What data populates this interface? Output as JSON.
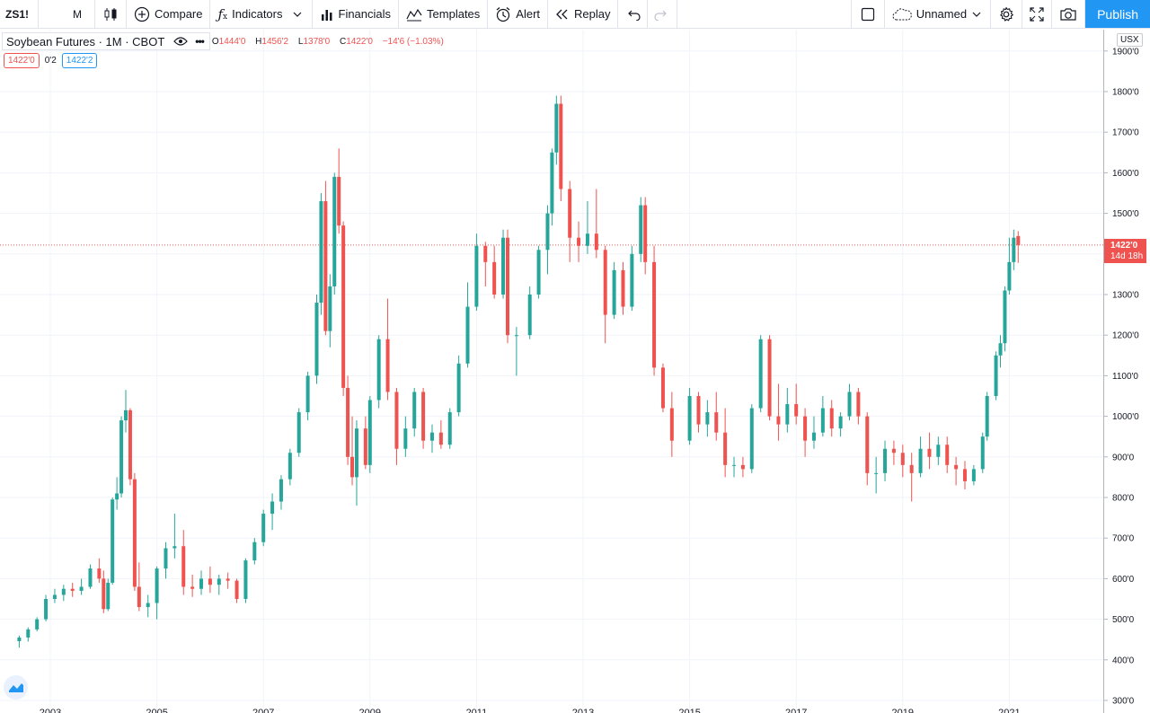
{
  "toolbar": {
    "symbol": "ZS1!",
    "interval": "M",
    "compare_label": "Compare",
    "indicators_label": "Indicators",
    "financials_label": "Financials",
    "templates_label": "Templates",
    "alert_label": "Alert",
    "replay_label": "Replay",
    "layout_name": "Unnamed",
    "publish_label": "Publish"
  },
  "legend": {
    "title": "Soybean Futures · 1M · CBOT",
    "open_label": "O",
    "open": "1444'0",
    "high_label": "H",
    "high": "1456'2",
    "low_label": "L",
    "low": "1378'0",
    "close_label": "C",
    "close": "1422'0",
    "change": "−14'6 (−1.03%)",
    "bid": "1422'0",
    "spread": "0'2",
    "ask": "1422'2"
  },
  "price_axis": {
    "currency": "USX",
    "current_price": "1422'0",
    "countdown": "14d 18h",
    "ticks": [
      "1900'0",
      "1800'0",
      "1700'0",
      "1600'0",
      "1500'0",
      "1400'0",
      "1300'0",
      "1200'0",
      "1100'0",
      "1000'0",
      "900'0",
      "800'0",
      "700'0",
      "600'0",
      "500'0",
      "400'0",
      "300'0"
    ]
  },
  "colors": {
    "up": "#26a69a",
    "down": "#ef5350",
    "accent": "#2196f3",
    "grid": "#f0f3fa"
  },
  "chart_data": {
    "type": "candlestick",
    "interval": "1M",
    "ylim": [
      300,
      1900
    ],
    "current_price": 1422,
    "x_tick_labels": [
      "2003",
      "2005",
      "2007",
      "2009",
      "2011",
      "2013",
      "2015",
      "2017",
      "2019",
      "2021"
    ],
    "series": [
      {
        "date": "2002-06",
        "ohlc": [
          446,
          460,
          430,
          455
        ]
      },
      {
        "date": "2002-08",
        "ohlc": [
          455,
          480,
          445,
          475
        ]
      },
      {
        "date": "2002-10",
        "ohlc": [
          475,
          505,
          470,
          500
        ]
      },
      {
        "date": "2002-12",
        "ohlc": [
          500,
          560,
          495,
          550
        ]
      },
      {
        "date": "2003-02",
        "ohlc": [
          550,
          575,
          540,
          560
        ]
      },
      {
        "date": "2003-04",
        "ohlc": [
          560,
          585,
          545,
          575
        ]
      },
      {
        "date": "2003-06",
        "ohlc": [
          575,
          590,
          555,
          570
        ]
      },
      {
        "date": "2003-08",
        "ohlc": [
          570,
          600,
          560,
          580
        ]
      },
      {
        "date": "2003-10",
        "ohlc": [
          580,
          635,
          575,
          625
        ]
      },
      {
        "date": "2003-12",
        "ohlc": [
          625,
          650,
          590,
          600
        ]
      },
      {
        "date": "2004-01",
        "ohlc": [
          600,
          620,
          515,
          525
        ]
      },
      {
        "date": "2004-02",
        "ohlc": [
          525,
          600,
          520,
          590
        ]
      },
      {
        "date": "2004-03",
        "ohlc": [
          590,
          800,
          585,
          795
        ]
      },
      {
        "date": "2004-04",
        "ohlc": [
          795,
          850,
          770,
          810
        ]
      },
      {
        "date": "2004-05",
        "ohlc": [
          810,
          1000,
          800,
          990
        ]
      },
      {
        "date": "2004-06",
        "ohlc": [
          990,
          1065,
          960,
          1015
        ]
      },
      {
        "date": "2004-07",
        "ohlc": [
          1015,
          1020,
          830,
          845
        ]
      },
      {
        "date": "2004-08",
        "ohlc": [
          845,
          860,
          570,
          580
        ]
      },
      {
        "date": "2004-09",
        "ohlc": [
          580,
          640,
          520,
          530
        ]
      },
      {
        "date": "2004-11",
        "ohlc": [
          530,
          560,
          505,
          540
        ]
      },
      {
        "date": "2005-01",
        "ohlc": [
          540,
          630,
          500,
          625
        ]
      },
      {
        "date": "2005-03",
        "ohlc": [
          625,
          690,
          600,
          675
        ]
      },
      {
        "date": "2005-05",
        "ohlc": [
          675,
          760,
          650,
          680
        ]
      },
      {
        "date": "2005-07",
        "ohlc": [
          680,
          720,
          560,
          580
        ]
      },
      {
        "date": "2005-09",
        "ohlc": [
          580,
          610,
          555,
          575
        ]
      },
      {
        "date": "2005-11",
        "ohlc": [
          575,
          620,
          560,
          600
        ]
      },
      {
        "date": "2006-01",
        "ohlc": [
          600,
          630,
          565,
          585
        ]
      },
      {
        "date": "2006-03",
        "ohlc": [
          585,
          610,
          560,
          600
        ]
      },
      {
        "date": "2006-05",
        "ohlc": [
          600,
          615,
          575,
          595
        ]
      },
      {
        "date": "2006-07",
        "ohlc": [
          595,
          600,
          540,
          550
        ]
      },
      {
        "date": "2006-09",
        "ohlc": [
          550,
          650,
          540,
          645
        ]
      },
      {
        "date": "2006-11",
        "ohlc": [
          645,
          700,
          635,
          690
        ]
      },
      {
        "date": "2007-01",
        "ohlc": [
          690,
          770,
          680,
          760
        ]
      },
      {
        "date": "2007-03",
        "ohlc": [
          760,
          810,
          720,
          790
        ]
      },
      {
        "date": "2007-05",
        "ohlc": [
          790,
          855,
          770,
          845
        ]
      },
      {
        "date": "2007-07",
        "ohlc": [
          845,
          920,
          830,
          910
        ]
      },
      {
        "date": "2007-09",
        "ohlc": [
          910,
          1020,
          900,
          1010
        ]
      },
      {
        "date": "2007-11",
        "ohlc": [
          1010,
          1110,
          990,
          1100
        ]
      },
      {
        "date": "2008-01",
        "ohlc": [
          1100,
          1300,
          1080,
          1280
        ]
      },
      {
        "date": "2008-02",
        "ohlc": [
          1280,
          1550,
          1250,
          1530
        ]
      },
      {
        "date": "2008-03",
        "ohlc": [
          1530,
          1580,
          1200,
          1210
        ]
      },
      {
        "date": "2008-04",
        "ohlc": [
          1210,
          1350,
          1170,
          1320
        ]
      },
      {
        "date": "2008-05",
        "ohlc": [
          1320,
          1600,
          1300,
          1590
        ]
      },
      {
        "date": "2008-06",
        "ohlc": [
          1590,
          1660,
          1450,
          1470
        ]
      },
      {
        "date": "2008-07",
        "ohlc": [
          1470,
          1480,
          1050,
          1070
        ]
      },
      {
        "date": "2008-08",
        "ohlc": [
          1070,
          1100,
          880,
          900
        ]
      },
      {
        "date": "2008-09",
        "ohlc": [
          900,
          1000,
          830,
          850
        ]
      },
      {
        "date": "2008-10",
        "ohlc": [
          850,
          990,
          780,
          970
        ]
      },
      {
        "date": "2008-12",
        "ohlc": [
          970,
          1000,
          870,
          880
        ]
      },
      {
        "date": "2009-01",
        "ohlc": [
          880,
          1050,
          860,
          1040
        ]
      },
      {
        "date": "2009-03",
        "ohlc": [
          1040,
          1200,
          1020,
          1190
        ]
      },
      {
        "date": "2009-05",
        "ohlc": [
          1190,
          1290,
          1040,
          1060
        ]
      },
      {
        "date": "2009-07",
        "ohlc": [
          1060,
          1070,
          880,
          920
        ]
      },
      {
        "date": "2009-09",
        "ohlc": [
          920,
          1000,
          900,
          970
        ]
      },
      {
        "date": "2009-11",
        "ohlc": [
          970,
          1070,
          950,
          1060
        ]
      },
      {
        "date": "2010-01",
        "ohlc": [
          1060,
          1070,
          920,
          940
        ]
      },
      {
        "date": "2010-03",
        "ohlc": [
          940,
          980,
          910,
          960
        ]
      },
      {
        "date": "2010-05",
        "ohlc": [
          960,
          990,
          920,
          930
        ]
      },
      {
        "date": "2010-07",
        "ohlc": [
          930,
          1020,
          920,
          1010
        ]
      },
      {
        "date": "2010-09",
        "ohlc": [
          1010,
          1150,
          1000,
          1130
        ]
      },
      {
        "date": "2010-11",
        "ohlc": [
          1130,
          1330,
          1120,
          1270
        ]
      },
      {
        "date": "2011-01",
        "ohlc": [
          1270,
          1450,
          1260,
          1420
        ]
      },
      {
        "date": "2011-03",
        "ohlc": [
          1420,
          1430,
          1320,
          1380
        ]
      },
      {
        "date": "2011-05",
        "ohlc": [
          1380,
          1420,
          1290,
          1300
        ]
      },
      {
        "date": "2011-07",
        "ohlc": [
          1300,
          1460,
          1290,
          1440
        ]
      },
      {
        "date": "2011-08",
        "ohlc": [
          1440,
          1460,
          1180,
          1200
        ]
      },
      {
        "date": "2011-10",
        "ohlc": [
          1200,
          1220,
          1100,
          1200
        ]
      },
      {
        "date": "2012-01",
        "ohlc": [
          1200,
          1320,
          1190,
          1300
        ]
      },
      {
        "date": "2012-03",
        "ohlc": [
          1300,
          1420,
          1290,
          1410
        ]
      },
      {
        "date": "2012-05",
        "ohlc": [
          1410,
          1520,
          1350,
          1500
        ]
      },
      {
        "date": "2012-06",
        "ohlc": [
          1500,
          1660,
          1470,
          1650
        ]
      },
      {
        "date": "2012-07",
        "ohlc": [
          1650,
          1790,
          1620,
          1770
        ]
      },
      {
        "date": "2012-08",
        "ohlc": [
          1770,
          1790,
          1530,
          1560
        ]
      },
      {
        "date": "2012-10",
        "ohlc": [
          1560,
          1580,
          1380,
          1440
        ]
      },
      {
        "date": "2012-12",
        "ohlc": [
          1440,
          1480,
          1380,
          1420
        ]
      },
      {
        "date": "2013-02",
        "ohlc": [
          1420,
          1530,
          1400,
          1450
        ]
      },
      {
        "date": "2013-04",
        "ohlc": [
          1450,
          1560,
          1390,
          1410
        ]
      },
      {
        "date": "2013-06",
        "ohlc": [
          1410,
          1420,
          1180,
          1250
        ]
      },
      {
        "date": "2013-08",
        "ohlc": [
          1250,
          1380,
          1240,
          1360
        ]
      },
      {
        "date": "2013-10",
        "ohlc": [
          1360,
          1380,
          1250,
          1270
        ]
      },
      {
        "date": "2013-12",
        "ohlc": [
          1270,
          1420,
          1260,
          1400
        ]
      },
      {
        "date": "2014-02",
        "ohlc": [
          1400,
          1540,
          1380,
          1520
        ]
      },
      {
        "date": "2014-03",
        "ohlc": [
          1520,
          1540,
          1350,
          1380
        ]
      },
      {
        "date": "2014-05",
        "ohlc": [
          1380,
          1420,
          1100,
          1120
        ]
      },
      {
        "date": "2014-07",
        "ohlc": [
          1120,
          1130,
          1010,
          1020
        ]
      },
      {
        "date": "2014-09",
        "ohlc": [
          1020,
          1060,
          900,
          940
        ]
      },
      {
        "date": "2015-01",
        "ohlc": [
          940,
          1070,
          930,
          1050
        ]
      },
      {
        "date": "2015-03",
        "ohlc": [
          1050,
          1060,
          960,
          980
        ]
      },
      {
        "date": "2015-05",
        "ohlc": [
          980,
          1040,
          950,
          1010
        ]
      },
      {
        "date": "2015-07",
        "ohlc": [
          1010,
          1060,
          940,
          960
        ]
      },
      {
        "date": "2015-09",
        "ohlc": [
          960,
          1020,
          850,
          880
        ]
      },
      {
        "date": "2015-11",
        "ohlc": [
          880,
          900,
          850,
          880
        ]
      },
      {
        "date": "2016-01",
        "ohlc": [
          880,
          900,
          850,
          870
        ]
      },
      {
        "date": "2016-03",
        "ohlc": [
          870,
          1030,
          860,
          1020
        ]
      },
      {
        "date": "2016-05",
        "ohlc": [
          1020,
          1200,
          1010,
          1190
        ]
      },
      {
        "date": "2016-07",
        "ohlc": [
          1190,
          1200,
          990,
          1000
        ]
      },
      {
        "date": "2016-09",
        "ohlc": [
          1000,
          1080,
          940,
          980
        ]
      },
      {
        "date": "2016-11",
        "ohlc": [
          980,
          1070,
          960,
          1030
        ]
      },
      {
        "date": "2017-01",
        "ohlc": [
          1030,
          1080,
          980,
          1000
        ]
      },
      {
        "date": "2017-03",
        "ohlc": [
          1000,
          1020,
          900,
          940
        ]
      },
      {
        "date": "2017-05",
        "ohlc": [
          940,
          1000,
          920,
          960
        ]
      },
      {
        "date": "2017-07",
        "ohlc": [
          960,
          1050,
          950,
          1020
        ]
      },
      {
        "date": "2017-09",
        "ohlc": [
          1020,
          1040,
          950,
          970
        ]
      },
      {
        "date": "2017-11",
        "ohlc": [
          970,
          1010,
          950,
          1000
        ]
      },
      {
        "date": "2018-01",
        "ohlc": [
          1000,
          1080,
          990,
          1060
        ]
      },
      {
        "date": "2018-03",
        "ohlc": [
          1060,
          1070,
          980,
          1000
        ]
      },
      {
        "date": "2018-05",
        "ohlc": [
          1000,
          1010,
          830,
          860
        ]
      },
      {
        "date": "2018-07",
        "ohlc": [
          860,
          900,
          810,
          860
        ]
      },
      {
        "date": "2018-09",
        "ohlc": [
          860,
          940,
          840,
          920
        ]
      },
      {
        "date": "2018-11",
        "ohlc": [
          920,
          940,
          880,
          910
        ]
      },
      {
        "date": "2019-01",
        "ohlc": [
          910,
          930,
          850,
          880
        ]
      },
      {
        "date": "2019-03",
        "ohlc": [
          880,
          910,
          790,
          860
        ]
      },
      {
        "date": "2019-05",
        "ohlc": [
          860,
          950,
          850,
          920
        ]
      },
      {
        "date": "2019-07",
        "ohlc": [
          920,
          960,
          870,
          900
        ]
      },
      {
        "date": "2019-09",
        "ohlc": [
          900,
          950,
          880,
          930
        ]
      },
      {
        "date": "2019-11",
        "ohlc": [
          930,
          950,
          860,
          880
        ]
      },
      {
        "date": "2020-01",
        "ohlc": [
          880,
          900,
          830,
          870
        ]
      },
      {
        "date": "2020-03",
        "ohlc": [
          870,
          890,
          820,
          840
        ]
      },
      {
        "date": "2020-05",
        "ohlc": [
          840,
          880,
          830,
          870
        ]
      },
      {
        "date": "2020-07",
        "ohlc": [
          870,
          960,
          860,
          950
        ]
      },
      {
        "date": "2020-08",
        "ohlc": [
          950,
          1060,
          940,
          1050
        ]
      },
      {
        "date": "2020-10",
        "ohlc": [
          1050,
          1160,
          1040,
          1150
        ]
      },
      {
        "date": "2020-11",
        "ohlc": [
          1150,
          1200,
          1120,
          1180
        ]
      },
      {
        "date": "2020-12",
        "ohlc": [
          1180,
          1320,
          1160,
          1310
        ]
      },
      {
        "date": "2021-01",
        "ohlc": [
          1310,
          1440,
          1300,
          1380
        ]
      },
      {
        "date": "2021-02",
        "ohlc": [
          1380,
          1460,
          1360,
          1440
        ]
      },
      {
        "date": "2021-03",
        "ohlc": [
          1444,
          1456,
          1378,
          1422
        ]
      }
    ]
  }
}
